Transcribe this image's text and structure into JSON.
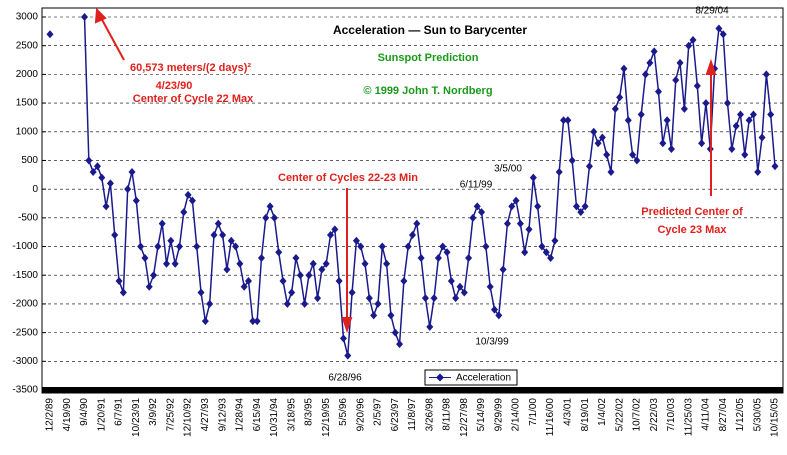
{
  "chart_data": {
    "type": "line",
    "title": "Acceleration — Sun to Barycenter",
    "annotations": [
      "Sunspot Prediction",
      "© 1999 John T. Nordberg",
      "60,573 meters/(2 days)²",
      "4/23/90",
      "Center of Cycle 22 Max",
      "Center of Cycles 22-23 Min",
      "Predicted Center of",
      "Cycle 23 Max",
      "8/29/04",
      "3/5/00",
      "6/11/99",
      "10/3/99",
      "6/28/96"
    ],
    "categories": [
      "12/2/89",
      null,
      null,
      null,
      "4/19/90",
      null,
      null,
      null,
      "9/4/90",
      null,
      null,
      null,
      "1/20/91",
      null,
      null,
      null,
      "6/7/91",
      null,
      null,
      null,
      "10/23/91",
      null,
      null,
      null,
      "3/9/92",
      null,
      null,
      null,
      "7/25/92",
      null,
      null,
      null,
      "12/10/92",
      null,
      null,
      null,
      "4/27/93",
      null,
      null,
      null,
      "9/12/93",
      null,
      null,
      null,
      "1/28/94",
      null,
      null,
      null,
      "6/15/94",
      null,
      null,
      null,
      "10/31/94",
      null,
      null,
      null,
      "3/18/95",
      null,
      null,
      null,
      "8/3/95",
      null,
      null,
      null,
      "12/19/95",
      null,
      null,
      null,
      "5/5/96",
      null,
      null,
      null,
      "9/20/96",
      null,
      null,
      null,
      "2/5/97",
      null,
      null,
      null,
      "6/23/97",
      null,
      null,
      null,
      "11/8/97",
      null,
      null,
      null,
      "3/26/98",
      null,
      null,
      null,
      "8/11/98",
      null,
      null,
      null,
      "12/27/98",
      null,
      null,
      null,
      "5/14/99",
      null,
      null,
      null,
      "9/29/99",
      null,
      null,
      null,
      "2/14/00",
      null,
      null,
      null,
      "7/1/00",
      null,
      null,
      null,
      "11/16/00",
      null,
      null,
      null,
      "4/3/01",
      null,
      null,
      null,
      "8/19/01",
      null,
      null,
      null,
      "1/4/02",
      null,
      null,
      null,
      "5/22/02",
      null,
      null,
      null,
      "10/7/02",
      null,
      null,
      null,
      "2/22/03",
      null,
      null,
      null,
      "7/10/03",
      null,
      null,
      null,
      "11/25/03",
      null,
      null,
      null,
      "4/11/04",
      null,
      null,
      null,
      "8/27/04",
      null,
      null,
      null,
      "1/12/05",
      null,
      null,
      null,
      "5/30/05",
      null,
      null,
      null,
      "10/15/05"
    ],
    "series": [
      {
        "name": "Acceleration",
        "color": "#1a1a8c",
        "values": [
          2700,
          null,
          null,
          null,
          null,
          null,
          null,
          null,
          3000,
          500,
          300,
          400,
          200,
          -300,
          100,
          -800,
          -1600,
          -1800,
          0,
          300,
          -200,
          -1000,
          -1200,
          -1700,
          -1500,
          -1000,
          -600,
          -1300,
          -900,
          -1300,
          -1000,
          -400,
          -100,
          -200,
          -1000,
          -1800,
          -2300,
          -2000,
          -800,
          -600,
          -800,
          -1400,
          -900,
          -1000,
          -1300,
          -1700,
          -1600,
          -2300,
          -2300,
          -1200,
          -500,
          -300,
          -500,
          -1100,
          -1600,
          -2000,
          -1800,
          -1200,
          -1500,
          -2000,
          -1500,
          -1300,
          -1900,
          -1400,
          -1300,
          -800,
          -700,
          -1600,
          -2600,
          -2900,
          -1800,
          -900,
          -1000,
          -1300,
          -1900,
          -2200,
          -2000,
          -1000,
          -1300,
          -2200,
          -2500,
          -2700,
          -1600,
          -1000,
          -800,
          -600,
          -1200,
          -1900,
          -2400,
          -1900,
          -1200,
          -1000,
          -1100,
          -1600,
          -1900,
          -1700,
          -1800,
          -1200,
          -500,
          -300,
          -400,
          -1000,
          -1700,
          -2100,
          -2200,
          -1400,
          -600,
          -300,
          -200,
          -600,
          -1100,
          -700,
          200,
          -300,
          -1000,
          -1100,
          -1200,
          -900,
          300,
          1200,
          1200,
          500,
          -300,
          -400,
          -300,
          400,
          1000,
          800,
          900,
          600,
          300,
          1400,
          1600,
          2100,
          1200,
          600,
          500,
          1300,
          2000,
          2200,
          2400,
          1700,
          800,
          1200,
          700,
          1900,
          2200,
          1400,
          2500,
          2600,
          1800,
          800,
          1500,
          700,
          2100,
          2800,
          2700,
          1500,
          700,
          1100,
          1300,
          600,
          1200,
          1300,
          300,
          900,
          2000,
          1300,
          400
        ]
      }
    ],
    "ylim": [
      -3500,
      3000
    ],
    "yticks": [
      -3500,
      -3000,
      -2500,
      -2000,
      -1500,
      -1000,
      -500,
      0,
      500,
      1000,
      1500,
      2000,
      2500,
      3000
    ],
    "grid": true
  }
}
